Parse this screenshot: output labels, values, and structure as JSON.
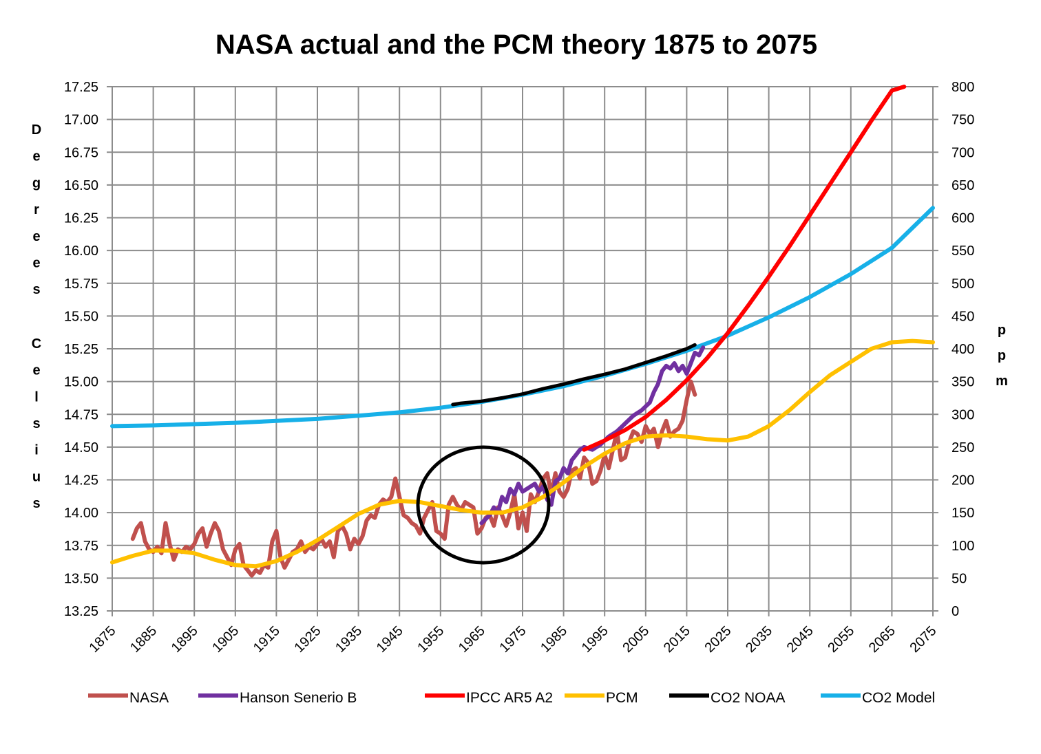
{
  "chart_data": {
    "type": "line",
    "title": "NASA actual and the PCM theory 1875 to 2075",
    "ylabel_left": "Degrees Celsius",
    "ylabel_right": "ppm",
    "x_ticks": [
      "1875",
      "1885",
      "1895",
      "1905",
      "1915",
      "1925",
      "1935",
      "1945",
      "1955",
      "1965",
      "1975",
      "1985",
      "1995",
      "2005",
      "2015",
      "2025",
      "2035",
      "2045",
      "2055",
      "2065",
      "2075"
    ],
    "y_left_ticks": [
      "17.25",
      "17.00",
      "16.75",
      "16.50",
      "16.25",
      "16.00",
      "15.75",
      "15.50",
      "15.25",
      "15.00",
      "14.75",
      "14.50",
      "14.25",
      "14.00",
      "13.75",
      "13.50",
      "13.25"
    ],
    "y_right_ticks": [
      "800",
      "750",
      "700",
      "650",
      "600",
      "550",
      "500",
      "450",
      "400",
      "350",
      "300",
      "250",
      "200",
      "150",
      "100",
      "50",
      "0"
    ],
    "xlim": [
      1875,
      2075
    ],
    "ylim_left": [
      13.25,
      17.25
    ],
    "ylim_right": [
      0,
      800
    ],
    "grid": true,
    "legend_position": "bottom",
    "series": [
      {
        "name": "NASA",
        "color": "#c0504d",
        "axis": "left",
        "points": [
          [
            1880,
            13.8
          ],
          [
            1881,
            13.88
          ],
          [
            1882,
            13.92
          ],
          [
            1883,
            13.78
          ],
          [
            1884,
            13.72
          ],
          [
            1885,
            13.7
          ],
          [
            1886,
            13.74
          ],
          [
            1887,
            13.69
          ],
          [
            1888,
            13.92
          ],
          [
            1889,
            13.76
          ],
          [
            1890,
            13.64
          ],
          [
            1891,
            13.72
          ],
          [
            1892,
            13.7
          ],
          [
            1893,
            13.74
          ],
          [
            1894,
            13.72
          ],
          [
            1895,
            13.76
          ],
          [
            1896,
            13.84
          ],
          [
            1897,
            13.88
          ],
          [
            1898,
            13.74
          ],
          [
            1899,
            13.84
          ],
          [
            1900,
            13.92
          ],
          [
            1901,
            13.86
          ],
          [
            1902,
            13.72
          ],
          [
            1903,
            13.66
          ],
          [
            1904,
            13.6
          ],
          [
            1905,
            13.72
          ],
          [
            1906,
            13.76
          ],
          [
            1907,
            13.6
          ],
          [
            1908,
            13.56
          ],
          [
            1909,
            13.52
          ],
          [
            1910,
            13.56
          ],
          [
            1911,
            13.54
          ],
          [
            1912,
            13.6
          ],
          [
            1913,
            13.58
          ],
          [
            1914,
            13.78
          ],
          [
            1915,
            13.86
          ],
          [
            1916,
            13.66
          ],
          [
            1917,
            13.58
          ],
          [
            1918,
            13.64
          ],
          [
            1919,
            13.7
          ],
          [
            1920,
            13.72
          ],
          [
            1921,
            13.78
          ],
          [
            1922,
            13.7
          ],
          [
            1923,
            13.74
          ],
          [
            1924,
            13.72
          ],
          [
            1925,
            13.76
          ],
          [
            1926,
            13.8
          ],
          [
            1927,
            13.74
          ],
          [
            1928,
            13.78
          ],
          [
            1929,
            13.66
          ],
          [
            1930,
            13.86
          ],
          [
            1931,
            13.9
          ],
          [
            1932,
            13.84
          ],
          [
            1933,
            13.72
          ],
          [
            1934,
            13.8
          ],
          [
            1935,
            13.76
          ],
          [
            1936,
            13.82
          ],
          [
            1937,
            13.94
          ],
          [
            1938,
            13.98
          ],
          [
            1939,
            13.96
          ],
          [
            1940,
            14.06
          ],
          [
            1941,
            14.1
          ],
          [
            1942,
            14.08
          ],
          [
            1943,
            14.12
          ],
          [
            1944,
            14.26
          ],
          [
            1945,
            14.12
          ],
          [
            1946,
            13.98
          ],
          [
            1947,
            13.96
          ],
          [
            1948,
            13.92
          ],
          [
            1949,
            13.9
          ],
          [
            1950,
            13.84
          ],
          [
            1951,
            13.96
          ],
          [
            1952,
            14.02
          ],
          [
            1953,
            14.08
          ],
          [
            1954,
            13.86
          ],
          [
            1955,
            13.84
          ],
          [
            1956,
            13.8
          ],
          [
            1957,
            14.06
          ],
          [
            1958,
            14.12
          ],
          [
            1959,
            14.06
          ],
          [
            1960,
            14.02
          ],
          [
            1961,
            14.08
          ],
          [
            1962,
            14.06
          ],
          [
            1963,
            14.04
          ],
          [
            1964,
            13.84
          ],
          [
            1965,
            13.88
          ],
          [
            1966,
            13.96
          ],
          [
            1967,
            13.98
          ],
          [
            1968,
            13.9
          ],
          [
            1969,
            14.04
          ],
          [
            1970,
            13.98
          ],
          [
            1971,
            13.9
          ],
          [
            1972,
            14.0
          ],
          [
            1973,
            14.14
          ],
          [
            1974,
            13.88
          ],
          [
            1975,
            14.0
          ],
          [
            1976,
            13.86
          ],
          [
            1977,
            14.14
          ],
          [
            1978,
            14.08
          ],
          [
            1979,
            14.16
          ],
          [
            1980,
            14.26
          ],
          [
            1981,
            14.3
          ],
          [
            1982,
            14.14
          ],
          [
            1983,
            14.3
          ],
          [
            1984,
            14.16
          ],
          [
            1985,
            14.12
          ],
          [
            1986,
            14.18
          ],
          [
            1987,
            14.32
          ],
          [
            1988,
            14.34
          ],
          [
            1989,
            14.26
          ],
          [
            1990,
            14.42
          ],
          [
            1991,
            14.38
          ],
          [
            1992,
            14.22
          ],
          [
            1993,
            14.24
          ],
          [
            1994,
            14.32
          ],
          [
            1995,
            14.44
          ],
          [
            1996,
            14.34
          ],
          [
            1997,
            14.48
          ],
          [
            1998,
            14.62
          ],
          [
            1999,
            14.4
          ],
          [
            2000,
            14.42
          ],
          [
            2001,
            14.54
          ],
          [
            2002,
            14.62
          ],
          [
            2003,
            14.6
          ],
          [
            2004,
            14.54
          ],
          [
            2005,
            14.66
          ],
          [
            2006,
            14.6
          ],
          [
            2007,
            14.64
          ],
          [
            2008,
            14.5
          ],
          [
            2009,
            14.62
          ],
          [
            2010,
            14.7
          ],
          [
            2011,
            14.58
          ],
          [
            2012,
            14.62
          ],
          [
            2013,
            14.64
          ],
          [
            2014,
            14.7
          ],
          [
            2015,
            14.86
          ],
          [
            2016,
            15.0
          ],
          [
            2017,
            14.9
          ]
        ]
      },
      {
        "name": "Hanson Senerio B",
        "color": "#7030a0",
        "axis": "left",
        "points": [
          [
            1965,
            13.92
          ],
          [
            1967,
            13.98
          ],
          [
            1968,
            14.04
          ],
          [
            1969,
            14.0
          ],
          [
            1970,
            14.12
          ],
          [
            1971,
            14.08
          ],
          [
            1972,
            14.18
          ],
          [
            1973,
            14.14
          ],
          [
            1974,
            14.22
          ],
          [
            1975,
            14.16
          ],
          [
            1976,
            14.18
          ],
          [
            1977,
            14.2
          ],
          [
            1978,
            14.22
          ],
          [
            1979,
            14.16
          ],
          [
            1980,
            14.2
          ],
          [
            1981,
            14.1
          ],
          [
            1982,
            14.06
          ],
          [
            1983,
            14.24
          ],
          [
            1984,
            14.26
          ],
          [
            1985,
            14.34
          ],
          [
            1986,
            14.3
          ],
          [
            1987,
            14.4
          ],
          [
            1988,
            14.44
          ],
          [
            1989,
            14.48
          ],
          [
            1990,
            14.5
          ],
          [
            1992,
            14.48
          ],
          [
            1994,
            14.52
          ],
          [
            1996,
            14.58
          ],
          [
            1998,
            14.62
          ],
          [
            2000,
            14.68
          ],
          [
            2002,
            14.74
          ],
          [
            2004,
            14.78
          ],
          [
            2006,
            14.84
          ],
          [
            2007,
            14.92
          ],
          [
            2008,
            14.98
          ],
          [
            2009,
            15.08
          ],
          [
            2010,
            15.12
          ],
          [
            2011,
            15.1
          ],
          [
            2012,
            15.14
          ],
          [
            2013,
            15.08
          ],
          [
            2014,
            15.12
          ],
          [
            2015,
            15.06
          ],
          [
            2016,
            15.14
          ],
          [
            2017,
            15.22
          ],
          [
            2018,
            15.2
          ],
          [
            2019,
            15.26
          ]
        ]
      },
      {
        "name": "IPCC AR5 A2",
        "color": "#ff0000",
        "axis": "left",
        "points": [
          [
            1990,
            14.48
          ],
          [
            1995,
            14.55
          ],
          [
            2000,
            14.63
          ],
          [
            2005,
            14.73
          ],
          [
            2010,
            14.86
          ],
          [
            2015,
            15.01
          ],
          [
            2020,
            15.18
          ],
          [
            2025,
            15.37
          ],
          [
            2030,
            15.58
          ],
          [
            2035,
            15.8
          ],
          [
            2040,
            16.03
          ],
          [
            2045,
            16.27
          ],
          [
            2050,
            16.51
          ],
          [
            2055,
            16.75
          ],
          [
            2060,
            16.99
          ],
          [
            2065,
            17.22
          ],
          [
            2068,
            17.36
          ]
        ]
      },
      {
        "name": "PCM",
        "color": "#ffc000",
        "axis": "left",
        "points": [
          [
            1875,
            13.62
          ],
          [
            1880,
            13.67
          ],
          [
            1885,
            13.71
          ],
          [
            1890,
            13.71
          ],
          [
            1895,
            13.69
          ],
          [
            1900,
            13.64
          ],
          [
            1905,
            13.6
          ],
          [
            1910,
            13.59
          ],
          [
            1915,
            13.63
          ],
          [
            1920,
            13.7
          ],
          [
            1925,
            13.79
          ],
          [
            1930,
            13.89
          ],
          [
            1935,
            13.99
          ],
          [
            1940,
            14.06
          ],
          [
            1945,
            14.09
          ],
          [
            1950,
            14.08
          ],
          [
            1955,
            14.05
          ],
          [
            1960,
            14.02
          ],
          [
            1965,
            14.0
          ],
          [
            1970,
            14.0
          ],
          [
            1975,
            14.04
          ],
          [
            1980,
            14.12
          ],
          [
            1985,
            14.23
          ],
          [
            1990,
            14.35
          ],
          [
            1995,
            14.45
          ],
          [
            2000,
            14.53
          ],
          [
            2005,
            14.58
          ],
          [
            2010,
            14.59
          ],
          [
            2015,
            14.58
          ],
          [
            2020,
            14.56
          ],
          [
            2025,
            14.55
          ],
          [
            2030,
            14.58
          ],
          [
            2035,
            14.66
          ],
          [
            2040,
            14.78
          ],
          [
            2045,
            14.92
          ],
          [
            2050,
            15.05
          ],
          [
            2055,
            15.15
          ],
          [
            2060,
            15.25
          ],
          [
            2065,
            15.3
          ],
          [
            2070,
            15.31
          ],
          [
            2075,
            15.3
          ]
        ]
      },
      {
        "name": "CO2 NOAA",
        "color": "#000000",
        "axis": "right",
        "points": [
          [
            1958,
            315
          ],
          [
            1960,
            317
          ],
          [
            1965,
            320
          ],
          [
            1970,
            325
          ],
          [
            1975,
            331
          ],
          [
            1980,
            339
          ],
          [
            1985,
            346
          ],
          [
            1990,
            354
          ],
          [
            1995,
            361
          ],
          [
            2000,
            369
          ],
          [
            2005,
            379
          ],
          [
            2010,
            389
          ],
          [
            2015,
            400
          ],
          [
            2017,
            406
          ]
        ]
      },
      {
        "name": "CO2 Model",
        "color": "#17b0e8",
        "axis": "right",
        "points": [
          [
            1875,
            282
          ],
          [
            1885,
            283
          ],
          [
            1895,
            285
          ],
          [
            1905,
            287
          ],
          [
            1915,
            290
          ],
          [
            1925,
            293
          ],
          [
            1935,
            298
          ],
          [
            1945,
            303
          ],
          [
            1955,
            310
          ],
          [
            1965,
            319
          ],
          [
            1975,
            330
          ],
          [
            1985,
            343
          ],
          [
            1995,
            359
          ],
          [
            2005,
            377
          ],
          [
            2015,
            397
          ],
          [
            2025,
            420
          ],
          [
            2035,
            448
          ],
          [
            2045,
            479
          ],
          [
            2055,
            514
          ],
          [
            2065,
            554
          ],
          [
            2075,
            615
          ]
        ]
      }
    ]
  }
}
